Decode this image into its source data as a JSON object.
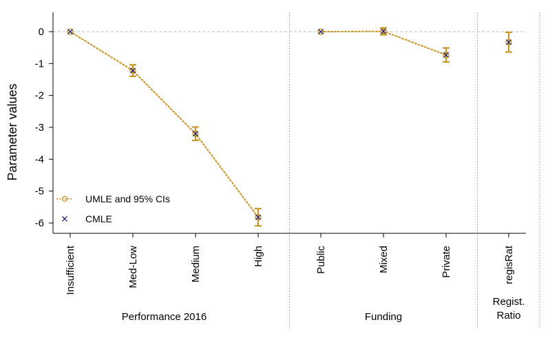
{
  "chart_data": {
    "type": "scatter",
    "ylabel": "Parameter values",
    "ylim": [
      -6.35,
      0.35
    ],
    "yticks": [
      0,
      -1,
      -2,
      -3,
      -4,
      -5,
      -6
    ],
    "ytick_labels": [
      "0",
      "-1",
      "-2",
      "-3",
      "-4",
      "-5",
      "-6"
    ],
    "reference_line": 0,
    "categories": [
      "Insufficient",
      "Med-Low",
      "Medium",
      "High",
      "Public",
      "Mixed",
      "Private",
      "regisRat"
    ],
    "groups": [
      {
        "label": "Performance 2016",
        "categories": [
          "Insufficient",
          "Med-Low",
          "Medium",
          "High"
        ],
        "connected": true
      },
      {
        "label": "Funding",
        "categories": [
          "Public",
          "Mixed",
          "Private"
        ],
        "connected": true
      },
      {
        "label": "Regist.\nRatio",
        "categories": [
          "regisRat"
        ],
        "connected": false
      }
    ],
    "series": [
      {
        "name": "UMLE and 95% CIs",
        "marker": "open-circle",
        "line": "dotted",
        "color": "#C8901C",
        "values": [
          0,
          -1.22,
          -3.2,
          -5.82,
          0,
          0.01,
          -0.73,
          -0.33
        ],
        "ci_low": [
          0,
          -1.4,
          -3.41,
          -6.09,
          0,
          -0.1,
          -0.95,
          -0.64
        ],
        "ci_high": [
          0,
          -1.04,
          -2.99,
          -5.55,
          0,
          0.12,
          -0.51,
          -0.02
        ]
      },
      {
        "name": "CMLE",
        "marker": "x",
        "color": "#1F1F6E",
        "values": [
          0,
          -1.22,
          -3.2,
          -5.82,
          0,
          0.01,
          -0.73,
          -0.33
        ]
      }
    ],
    "legend_position": "bottom-left",
    "grid": false
  }
}
